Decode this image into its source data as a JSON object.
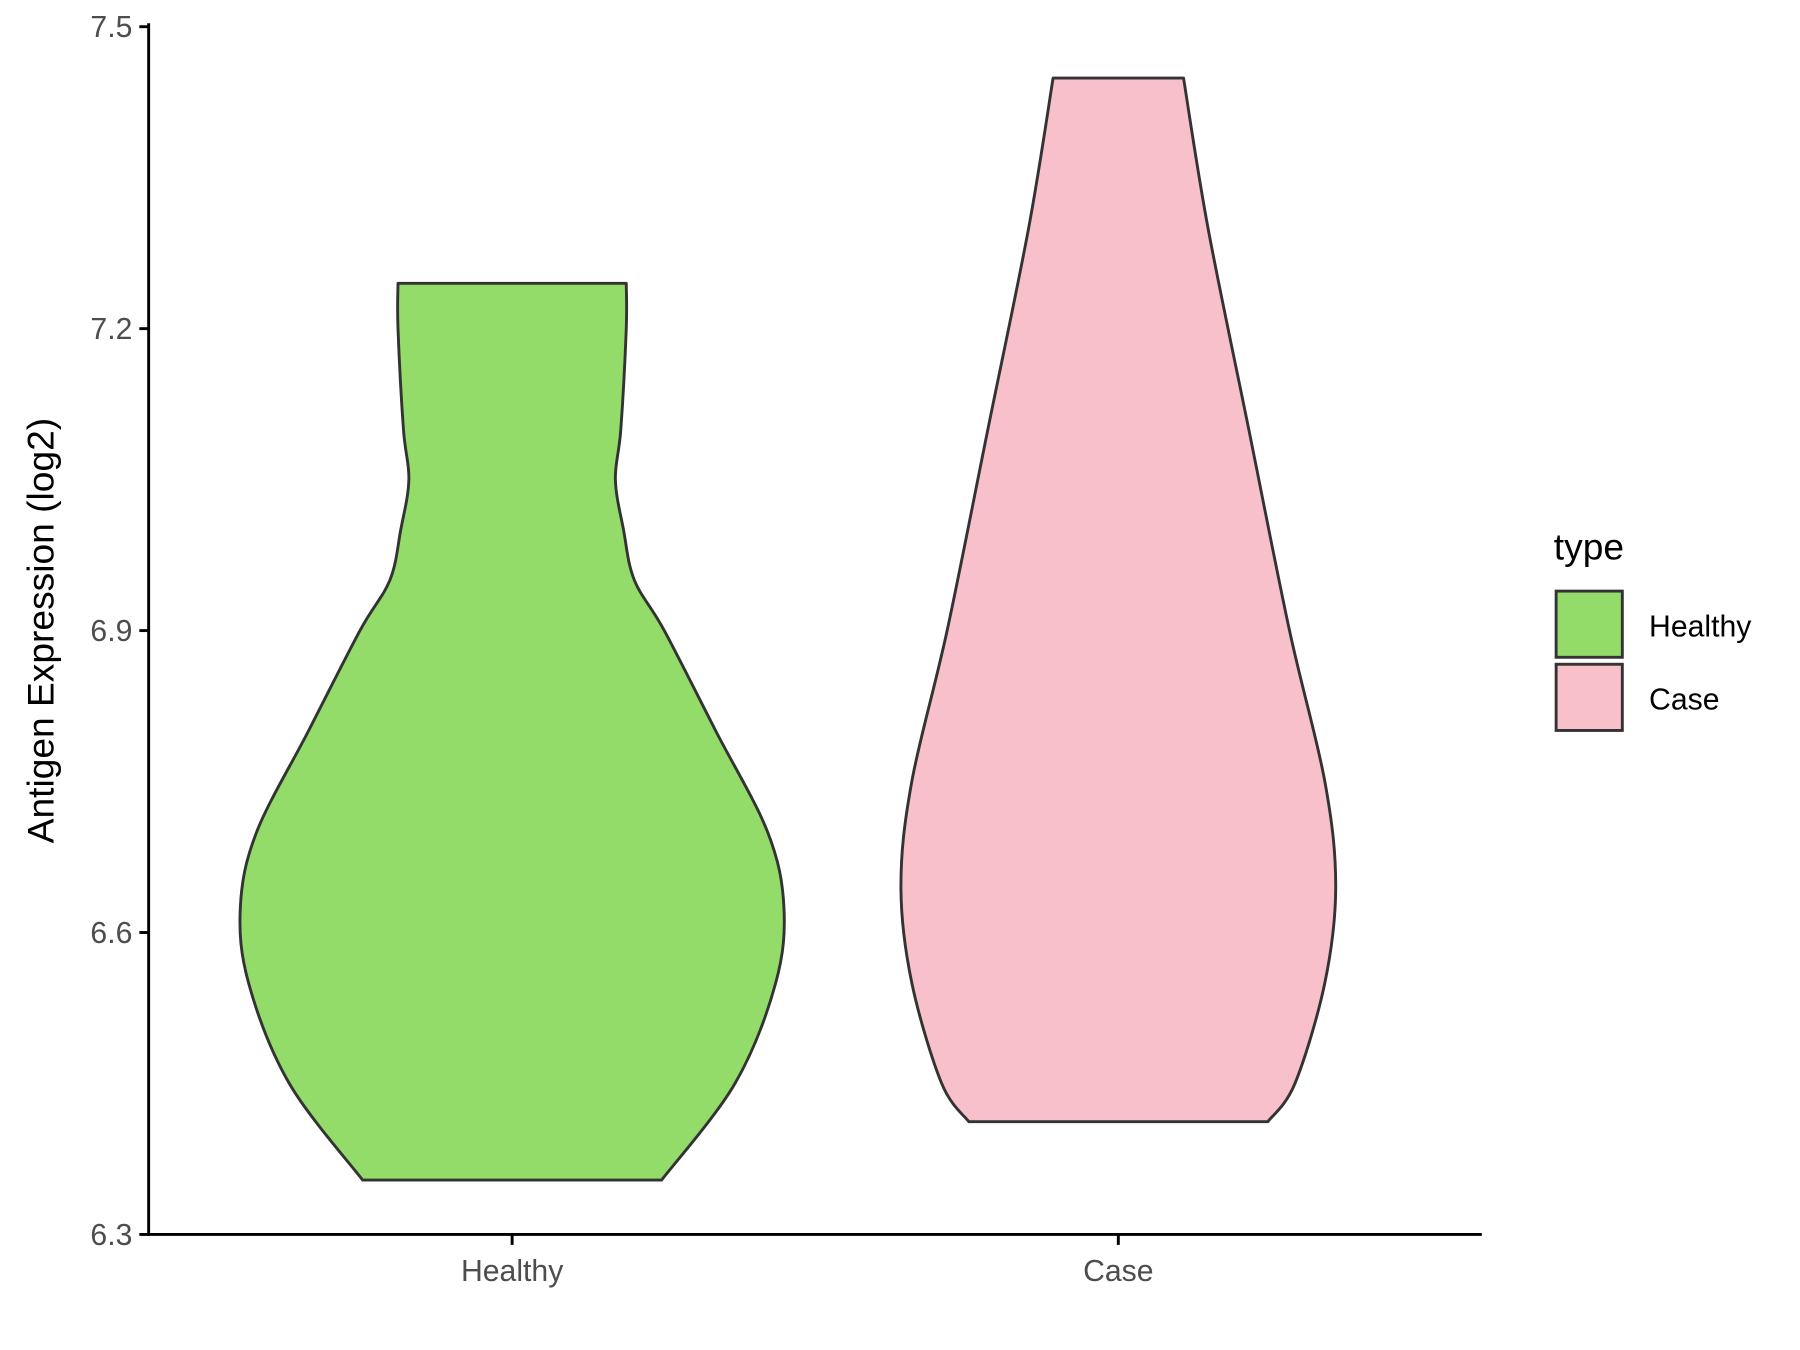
{
  "chart_data": {
    "type": "violin",
    "title": "",
    "xlabel": "",
    "ylabel": "Antigen Expression (log2)",
    "ylim": [
      6.3,
      7.5
    ],
    "yticks": [
      "6.3",
      "6.6",
      "6.9",
      "7.2",
      "7.5"
    ],
    "categories": [
      "Healthy",
      "Case"
    ],
    "grid": false,
    "legend": {
      "title": "type",
      "placement": "right",
      "entries": [
        "Healthy",
        "Case"
      ]
    },
    "series": [
      {
        "name": "Healthy",
        "color": "#93dc6a",
        "min": 6.354,
        "max": 7.245,
        "density_profile": [
          [
            6.354,
            0.55
          ],
          [
            6.45,
            0.82
          ],
          [
            6.55,
            0.97
          ],
          [
            6.626,
            1.0
          ],
          [
            6.7,
            0.94
          ],
          [
            6.8,
            0.75
          ],
          [
            6.9,
            0.56
          ],
          [
            6.95,
            0.45
          ],
          [
            7.0,
            0.41
          ],
          [
            7.05,
            0.38
          ],
          [
            7.1,
            0.4
          ],
          [
            7.2,
            0.42
          ],
          [
            7.245,
            0.42
          ]
        ]
      },
      {
        "name": "Case",
        "color": "#f8c0cb",
        "min": 6.412,
        "max": 7.449,
        "density_profile": [
          [
            6.412,
            0.55
          ],
          [
            6.45,
            0.65
          ],
          [
            6.55,
            0.76
          ],
          [
            6.646,
            0.8
          ],
          [
            6.75,
            0.76
          ],
          [
            6.9,
            0.63
          ],
          [
            7.1,
            0.48
          ],
          [
            7.3,
            0.33
          ],
          [
            7.449,
            0.24
          ]
        ]
      }
    ],
    "outline_color": "#333333"
  }
}
